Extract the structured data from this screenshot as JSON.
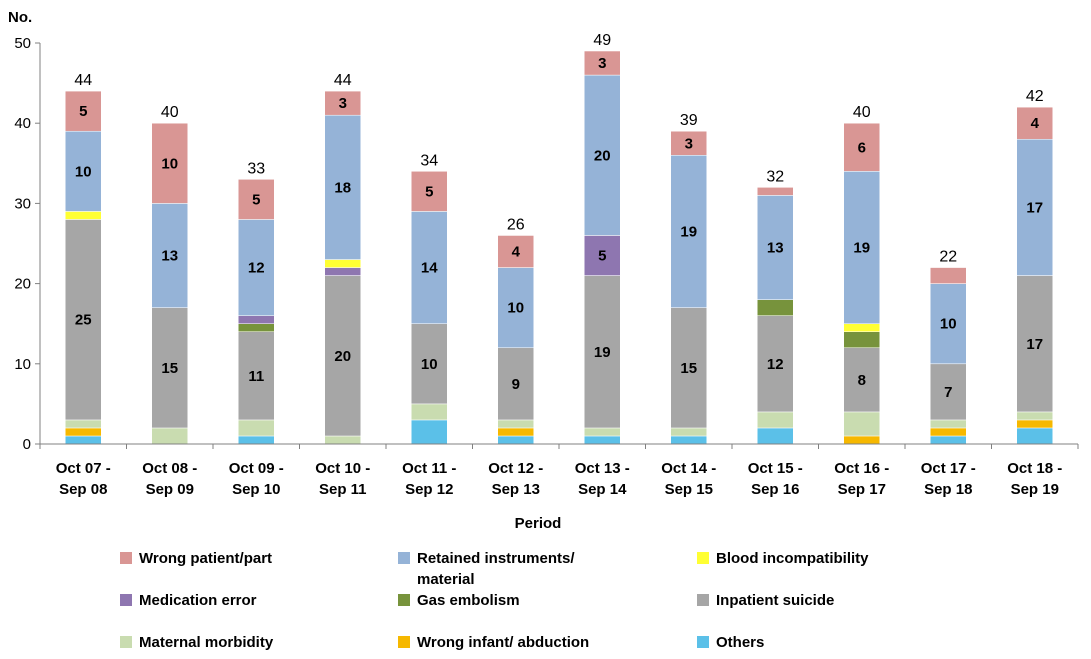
{
  "chart_data": {
    "type": "bar",
    "stacked": true,
    "ylabel": "No.",
    "xlabel": "Period",
    "ylim": [
      0,
      50
    ],
    "yticks": [
      0,
      10,
      20,
      30,
      40,
      50
    ],
    "grid": false,
    "legend_position": "bottom",
    "categories": [
      [
        "Oct 07 -",
        "Sep 08"
      ],
      [
        "Oct 08 -",
        "Sep 09"
      ],
      [
        "Oct 09 -",
        "Sep 10"
      ],
      [
        "Oct 10 -",
        "Sep 11"
      ],
      [
        "Oct 11 -",
        "Sep 12"
      ],
      [
        "Oct 12 -",
        "Sep 13"
      ],
      [
        "Oct 13 -",
        "Sep 14"
      ],
      [
        "Oct 14 -",
        "Sep 15"
      ],
      [
        "Oct 15 -",
        "Sep 16"
      ],
      [
        "Oct 16 -",
        "Sep 17"
      ],
      [
        "Oct 17 -",
        "Sep 18"
      ],
      [
        "Oct 18 -",
        "Sep 19"
      ]
    ],
    "totals": [
      44,
      40,
      33,
      44,
      34,
      26,
      49,
      39,
      32,
      40,
      22,
      42
    ],
    "series": [
      {
        "name": "Others",
        "color": "#5bc0e8",
        "values": [
          1,
          0,
          1,
          0,
          3,
          1,
          1,
          1,
          2,
          0,
          1,
          2
        ]
      },
      {
        "name": "Wrong infant/ abduction",
        "color": "#f6b800",
        "values": [
          1,
          0,
          0,
          0,
          0,
          1,
          0,
          0,
          0,
          1,
          1,
          1
        ]
      },
      {
        "name": "Maternal morbidity",
        "color": "#c9dcb0",
        "values": [
          1,
          2,
          2,
          1,
          2,
          1,
          1,
          1,
          2,
          3,
          1,
          1
        ]
      },
      {
        "name": "Inpatient suicide",
        "color": "#a6a6a6",
        "values": [
          25,
          15,
          11,
          20,
          10,
          9,
          19,
          15,
          12,
          8,
          7,
          17
        ],
        "labels": true
      },
      {
        "name": "Gas embolism",
        "color": "#77933c",
        "values": [
          0,
          0,
          1,
          0,
          0,
          0,
          0,
          0,
          2,
          2,
          0,
          0
        ]
      },
      {
        "name": "Medication error",
        "color": "#8e76b0",
        "values": [
          0,
          0,
          1,
          1,
          0,
          0,
          5,
          0,
          0,
          0,
          0,
          0
        ],
        "labels": true,
        "label_min": 3
      },
      {
        "name": "Blood incompatibility",
        "color": "#ffff33",
        "values": [
          1,
          0,
          0,
          1,
          0,
          0,
          0,
          0,
          0,
          1,
          0,
          0
        ]
      },
      {
        "name": "Retained instruments/ material",
        "color": "#95b3d7",
        "values": [
          10,
          13,
          12,
          18,
          14,
          10,
          20,
          19,
          13,
          19,
          10,
          17
        ],
        "labels": true
      },
      {
        "name": "Wrong patient/part",
        "color": "#d99694",
        "values": [
          5,
          10,
          5,
          3,
          5,
          4,
          3,
          3,
          1,
          6,
          2,
          4
        ],
        "labels": true,
        "label_min": 3
      }
    ],
    "legend": [
      [
        "Wrong patient/part",
        "Retained instruments/ material",
        "Blood incompatibility"
      ],
      [
        "Medication error",
        "Gas embolism",
        "Inpatient suicide"
      ],
      [
        "Maternal morbidity",
        "Wrong infant/ abduction",
        "Others"
      ]
    ]
  }
}
